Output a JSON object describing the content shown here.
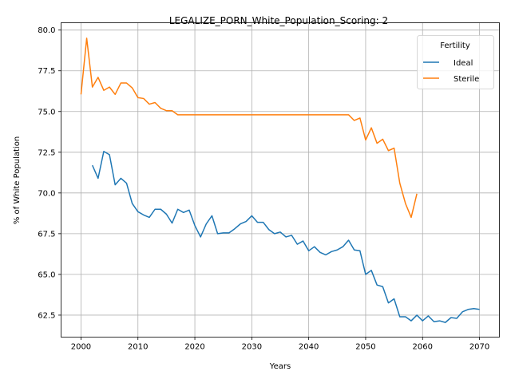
{
  "chart_data": {
    "type": "line",
    "title": "LEGALIZE_PORN_White_Population_Scoring: 2",
    "xlabel": "Years",
    "ylabel": "% of White Population",
    "xlim": [
      1996.5,
      2073.5
    ],
    "ylim": [
      61.15,
      80.45
    ],
    "xticks": [
      2000,
      2010,
      2020,
      2030,
      2040,
      2050,
      2060,
      2070
    ],
    "yticks": [
      62.5,
      65.0,
      67.5,
      70.0,
      72.5,
      75.0,
      77.5,
      80.0
    ],
    "xtick_labels": [
      "2000",
      "2010",
      "2020",
      "2030",
      "2040",
      "2050",
      "2060",
      "2070"
    ],
    "ytick_labels": [
      "62.5",
      "65.0",
      "67.5",
      "70.0",
      "72.5",
      "75.0",
      "77.5",
      "80.0"
    ],
    "grid": true,
    "legend": {
      "title": "Fertility",
      "placement": "upper-right"
    },
    "series": [
      {
        "name": "Ideal",
        "color": "#1f77b4",
        "x": [
          2002,
          2003,
          2004,
          2005,
          2006,
          2007,
          2008,
          2009,
          2010,
          2011,
          2012,
          2013,
          2014,
          2015,
          2016,
          2017,
          2018,
          2019,
          2020,
          2021,
          2022,
          2023,
          2024,
          2025,
          2026,
          2027,
          2028,
          2029,
          2030,
          2031,
          2032,
          2033,
          2034,
          2035,
          2036,
          2037,
          2038,
          2039,
          2040,
          2041,
          2042,
          2043,
          2044,
          2045,
          2046,
          2047,
          2048,
          2049,
          2050,
          2051,
          2052,
          2053,
          2054,
          2055,
          2056,
          2057,
          2058,
          2059,
          2060,
          2061,
          2062,
          2063,
          2064,
          2065,
          2066,
          2067,
          2068,
          2069,
          2070
        ],
        "y": [
          71.7,
          70.9,
          72.55,
          72.35,
          70.5,
          70.9,
          70.6,
          69.35,
          68.85,
          68.65,
          68.5,
          69.0,
          69.0,
          68.7,
          68.15,
          69.0,
          68.8,
          68.95,
          68.0,
          67.3,
          68.1,
          68.6,
          67.5,
          67.55,
          67.55,
          67.8,
          68.1,
          68.25,
          68.6,
          68.2,
          68.2,
          67.75,
          67.5,
          67.6,
          67.3,
          67.4,
          66.85,
          67.05,
          66.45,
          66.7,
          66.35,
          66.2,
          66.4,
          66.5,
          66.7,
          67.1,
          66.5,
          66.45,
          65.0,
          65.25,
          64.35,
          64.25,
          63.25,
          63.5,
          62.4,
          62.4,
          62.15,
          62.5,
          62.15,
          62.45,
          62.1,
          62.15,
          62.05,
          62.35,
          62.3,
          62.7,
          62.85,
          62.9,
          62.85
        ]
      },
      {
        "name": "Sterile",
        "color": "#ff7f0e",
        "x": [
          2000,
          2001,
          2002,
          2003,
          2004,
          2005,
          2006,
          2007,
          2008,
          2009,
          2010,
          2011,
          2012,
          2013,
          2014,
          2015,
          2016,
          2017,
          2018,
          2019,
          2020,
          2021,
          2022,
          2023,
          2024,
          2025,
          2026,
          2027,
          2028,
          2029,
          2030,
          2031,
          2032,
          2033,
          2034,
          2035,
          2036,
          2037,
          2038,
          2039,
          2040,
          2041,
          2042,
          2043,
          2044,
          2045,
          2046,
          2047,
          2048,
          2049,
          2050,
          2051,
          2052,
          2053,
          2054,
          2055,
          2056,
          2057,
          2058,
          2059
        ],
        "y": [
          76.05,
          79.5,
          76.5,
          77.1,
          76.3,
          76.5,
          76.05,
          76.75,
          76.75,
          76.45,
          75.85,
          75.8,
          75.45,
          75.55,
          75.2,
          75.05,
          75.05,
          74.8,
          74.8,
          74.8,
          74.8,
          74.8,
          74.8,
          74.8,
          74.8,
          74.8,
          74.8,
          74.8,
          74.8,
          74.8,
          74.8,
          74.8,
          74.8,
          74.8,
          74.8,
          74.8,
          74.8,
          74.8,
          74.8,
          74.8,
          74.8,
          74.8,
          74.8,
          74.8,
          74.8,
          74.8,
          74.8,
          74.8,
          74.45,
          74.6,
          73.25,
          74.0,
          73.05,
          73.3,
          72.6,
          72.75,
          70.6,
          69.35,
          68.5,
          69.95
        ]
      }
    ]
  }
}
